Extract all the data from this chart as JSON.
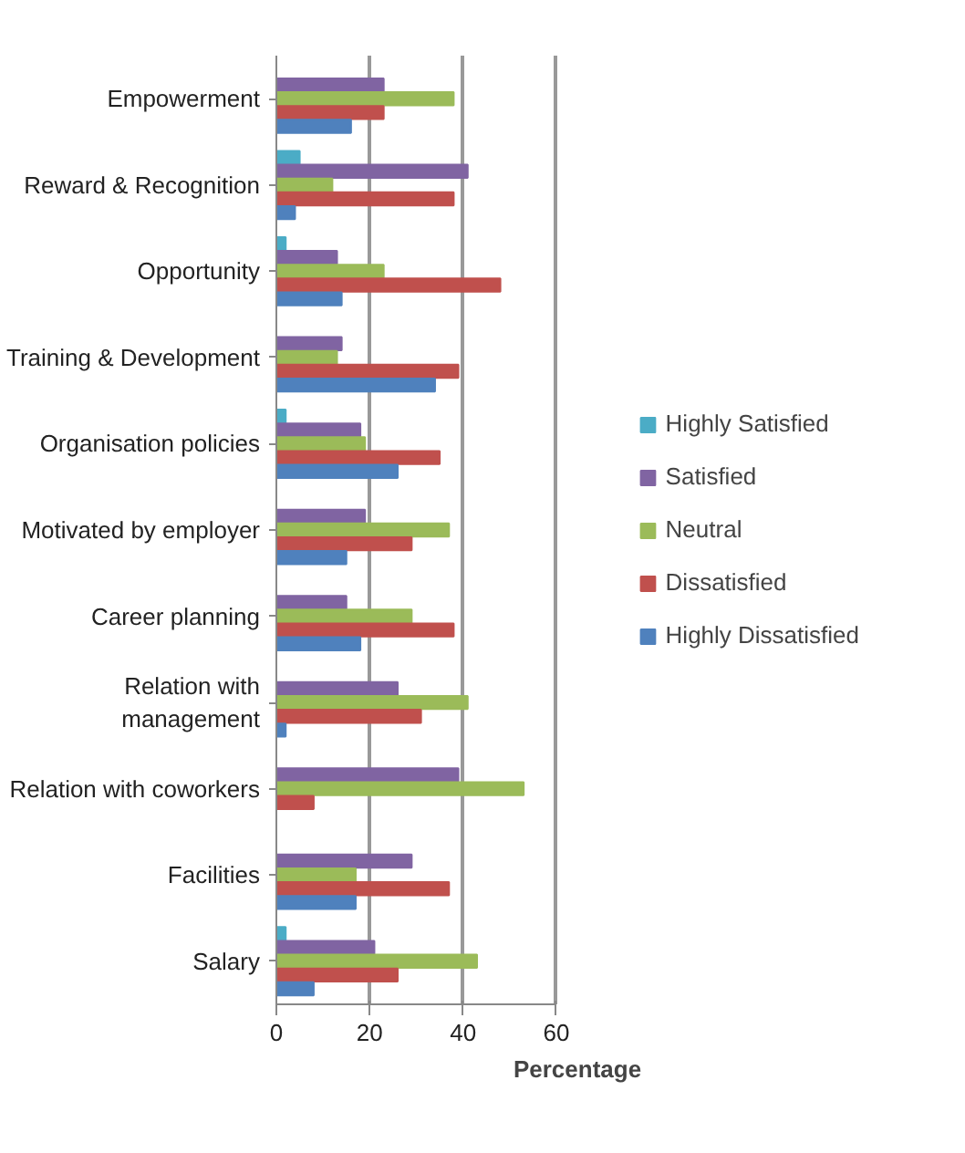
{
  "chart_data": {
    "type": "bar",
    "orientation": "horizontal",
    "xlabel": "Percentage",
    "categories": [
      "Empowerment",
      "Reward & Recognition",
      "Opportunity",
      "Training & Development",
      "Organisation policies",
      "Motivated by employer",
      "Career planning",
      "Relation with\nmanagement",
      "Relation with coworkers",
      "Facilities",
      "Salary"
    ],
    "series": [
      {
        "name": "Highly Satisfied",
        "color": "#4bacc6",
        "values": [
          0,
          5,
          2,
          0,
          2,
          0,
          0,
          0,
          0,
          0,
          2
        ]
      },
      {
        "name": "Satisfied",
        "color": "#8064a2",
        "values": [
          23,
          41,
          13,
          14,
          18,
          19,
          15,
          26,
          39,
          29,
          21
        ]
      },
      {
        "name": "Neutral",
        "color": "#9bbb59",
        "values": [
          38,
          12,
          23,
          13,
          19,
          37,
          29,
          41,
          53,
          17,
          43
        ]
      },
      {
        "name": "Dissatisfied",
        "color": "#c0504d",
        "values": [
          23,
          38,
          48,
          39,
          35,
          29,
          38,
          31,
          8,
          37,
          26
        ]
      },
      {
        "name": "Highly Dissatisfied",
        "color": "#4f81bd",
        "values": [
          16,
          4,
          14,
          34,
          26,
          15,
          18,
          2,
          0,
          17,
          8
        ]
      }
    ],
    "xlim": [
      0,
      60
    ],
    "xticks": [
      0,
      20,
      40,
      60
    ],
    "grid": "x",
    "legend": "right"
  }
}
